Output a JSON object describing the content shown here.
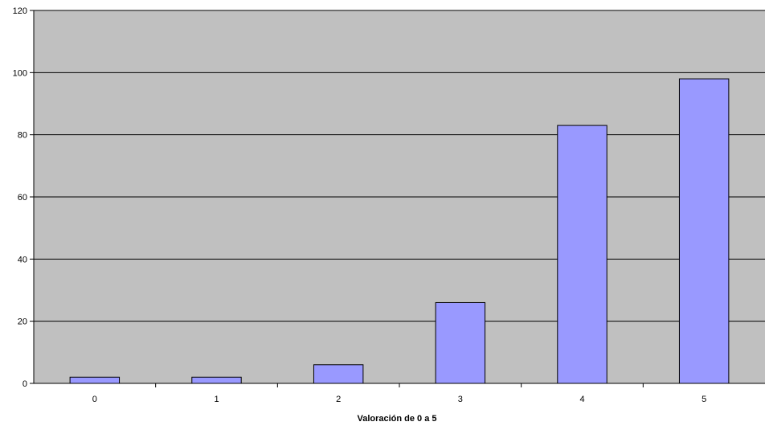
{
  "chart_data": {
    "type": "bar",
    "title": "",
    "xlabel": "Valoración de 0 a 5",
    "ylabel": "",
    "categories": [
      "0",
      "1",
      "2",
      "3",
      "4",
      "5"
    ],
    "values": [
      2,
      2,
      6,
      26,
      83,
      98
    ],
    "ylim": [
      0,
      120
    ],
    "yticks": [
      "0",
      "20",
      "40",
      "60",
      "80",
      "100",
      "120"
    ],
    "grid": true,
    "legend": "none",
    "colors": {
      "plot_background": "#c0c0c0",
      "bar_fill": "#9999ff",
      "bar_stroke": "#000000",
      "gridline": "#000000"
    }
  }
}
